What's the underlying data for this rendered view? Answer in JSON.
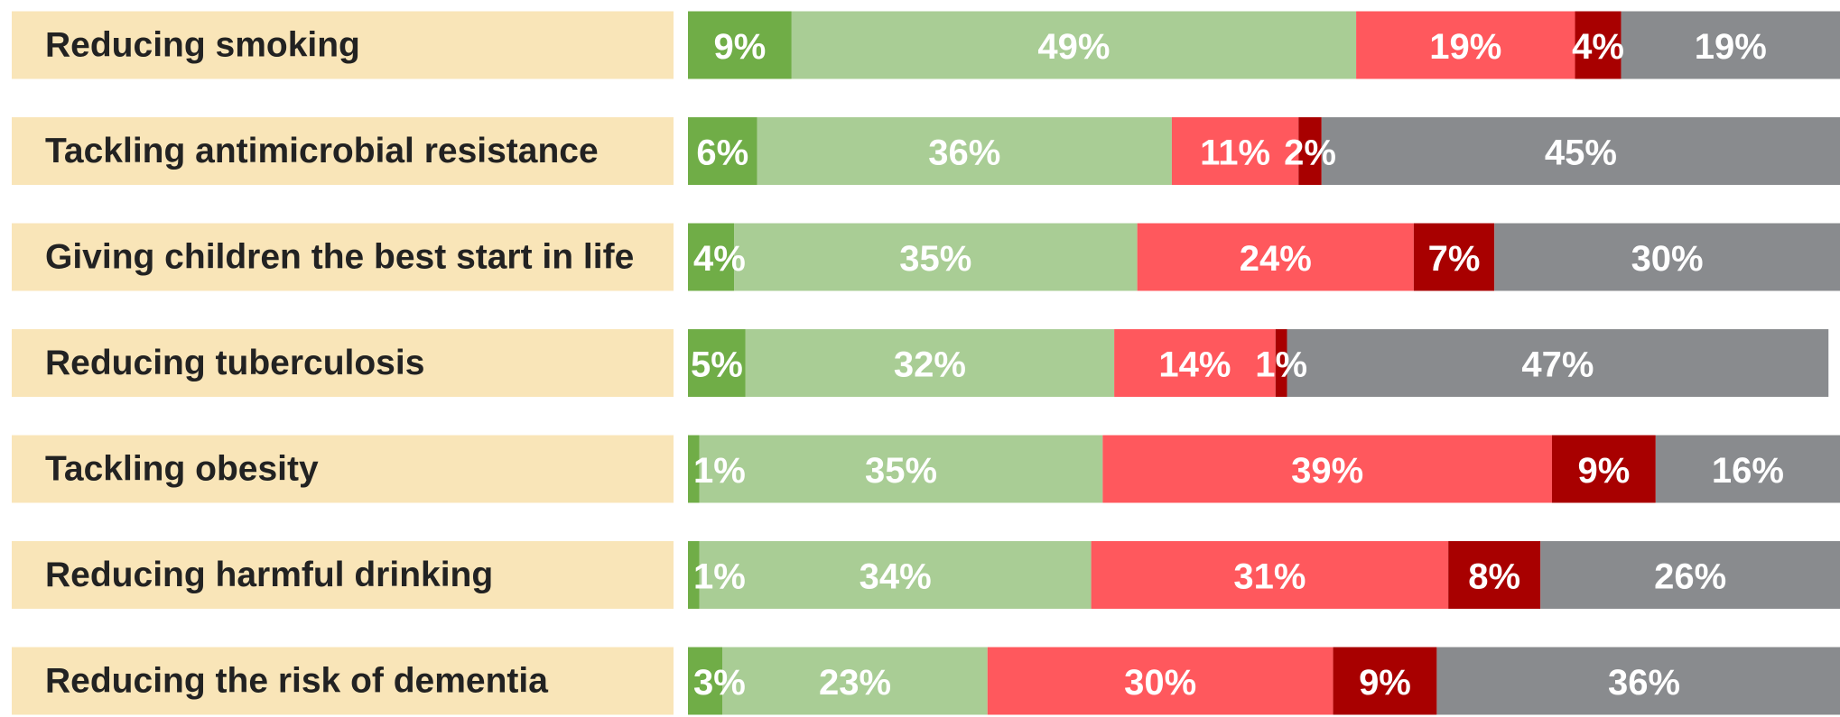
{
  "chart_data": {
    "type": "bar",
    "orientation": "horizontal",
    "stacked": true,
    "categories": [
      "Reducing smoking",
      "Tackling antimicrobial resistance",
      "Giving children the best start in life",
      "Reducing tuberculosis",
      "Tackling obesity",
      "Reducing harmful drinking",
      "Reducing the risk of dementia"
    ],
    "xlim": [
      0,
      100
    ],
    "series": [
      {
        "color": "#70ad47",
        "values": [
          9,
          6,
          4,
          5,
          1,
          1,
          3
        ],
        "value_labels": [
          "9%",
          "6%",
          "4%",
          "5%",
          "1%",
          "1%",
          "3%"
        ]
      },
      {
        "color": "#a9cd95",
        "values": [
          49,
          36,
          35,
          32,
          35,
          34,
          23
        ],
        "value_labels": [
          "49%",
          "36%",
          "35%",
          "32%",
          "35%",
          "34%",
          "23%"
        ]
      },
      {
        "color": "#ff585d",
        "values": [
          19,
          11,
          24,
          14,
          39,
          31,
          30
        ],
        "value_labels": [
          "19%",
          "11%",
          "24%",
          "14%",
          "39%",
          "31%",
          "30%"
        ]
      },
      {
        "color": "#a80000",
        "values": [
          4,
          2,
          7,
          1,
          9,
          8,
          9
        ],
        "value_labels": [
          "4%",
          "2%",
          "7%",
          "1%",
          "9%",
          "8%",
          "9%"
        ]
      },
      {
        "color": "#898b8e",
        "values": [
          19,
          45,
          30,
          47,
          16,
          26,
          36
        ],
        "value_labels": [
          "19%",
          "45%",
          "30%",
          "47%",
          "16%",
          "26%",
          "36%"
        ]
      }
    ]
  }
}
